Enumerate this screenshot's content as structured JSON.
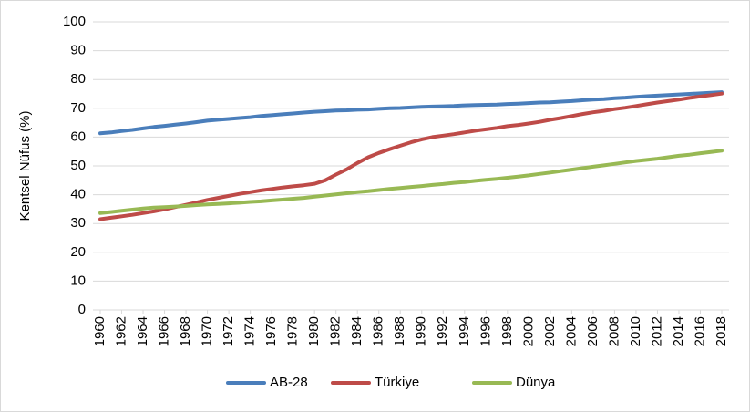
{
  "chart_data": {
    "type": "line",
    "y_label": "Kentsel Nüfus (%)",
    "x": [
      1960,
      1961,
      1962,
      1963,
      1964,
      1965,
      1966,
      1967,
      1968,
      1969,
      1970,
      1971,
      1972,
      1973,
      1974,
      1975,
      1976,
      1977,
      1978,
      1979,
      1980,
      1981,
      1982,
      1983,
      1984,
      1985,
      1986,
      1987,
      1988,
      1989,
      1990,
      1991,
      1992,
      1993,
      1994,
      1995,
      1996,
      1997,
      1998,
      1999,
      2000,
      2001,
      2002,
      2003,
      2004,
      2005,
      2006,
      2007,
      2008,
      2009,
      2010,
      2011,
      2012,
      2013,
      2014,
      2015,
      2016,
      2017,
      2018
    ],
    "series": [
      {
        "name": "AB-28",
        "color": "#4a7ebb",
        "values": [
          61.3,
          61.6,
          62.1,
          62.5,
          63.0,
          63.5,
          63.9,
          64.3,
          64.7,
          65.2,
          65.7,
          66.0,
          66.3,
          66.6,
          66.9,
          67.3,
          67.6,
          67.9,
          68.2,
          68.5,
          68.8,
          69.0,
          69.2,
          69.3,
          69.5,
          69.6,
          69.8,
          70.0,
          70.1,
          70.3,
          70.5,
          70.6,
          70.7,
          70.8,
          71.0,
          71.1,
          71.2,
          71.3,
          71.5,
          71.6,
          71.8,
          72.0,
          72.1,
          72.3,
          72.5,
          72.8,
          73.0,
          73.2,
          73.5,
          73.7,
          74.0,
          74.2,
          74.4,
          74.6,
          74.8,
          75.0,
          75.2,
          75.4,
          75.6
        ]
      },
      {
        "name": "Türkiye",
        "color": "#be4b48",
        "values": [
          31.5,
          32.0,
          32.5,
          33.0,
          33.6,
          34.2,
          34.9,
          35.7,
          36.5,
          37.3,
          38.2,
          38.9,
          39.6,
          40.3,
          40.9,
          41.5,
          42.0,
          42.5,
          42.9,
          43.3,
          43.8,
          45.0,
          47.0,
          48.8,
          51.0,
          53.0,
          54.5,
          55.8,
          57.0,
          58.2,
          59.2,
          60.0,
          60.5,
          61.0,
          61.6,
          62.2,
          62.7,
          63.2,
          63.8,
          64.2,
          64.7,
          65.3,
          66.0,
          66.6,
          67.3,
          68.0,
          68.6,
          69.1,
          69.7,
          70.2,
          70.8,
          71.4,
          72.0,
          72.5,
          73.0,
          73.6,
          74.1,
          74.6,
          75.1
        ]
      },
      {
        "name": "Dünya",
        "color": "#98b954",
        "values": [
          33.6,
          34.0,
          34.4,
          34.8,
          35.2,
          35.5,
          35.7,
          35.9,
          36.1,
          36.4,
          36.6,
          36.8,
          37.0,
          37.2,
          37.5,
          37.7,
          38.0,
          38.3,
          38.6,
          38.9,
          39.3,
          39.7,
          40.1,
          40.5,
          40.9,
          41.2,
          41.6,
          42.0,
          42.3,
          42.7,
          43.0,
          43.4,
          43.7,
          44.1,
          44.4,
          44.8,
          45.2,
          45.5,
          45.9,
          46.3,
          46.7,
          47.2,
          47.7,
          48.2,
          48.7,
          49.2,
          49.7,
          50.2,
          50.7,
          51.2,
          51.7,
          52.1,
          52.5,
          53.0,
          53.5,
          53.9,
          54.4,
          54.8,
          55.3
        ]
      }
    ],
    "xlim": [
      1960,
      2018
    ],
    "xticks": [
      1960,
      1962,
      1964,
      1966,
      1968,
      1970,
      1972,
      1974,
      1976,
      1978,
      1980,
      1982,
      1984,
      1986,
      1988,
      1990,
      1992,
      1994,
      1996,
      1998,
      2000,
      2002,
      2004,
      2006,
      2008,
      2010,
      2012,
      2014,
      2016,
      2018
    ],
    "ylim": [
      0,
      100
    ],
    "yticks": [
      0,
      10,
      20,
      30,
      40,
      50,
      60,
      70,
      80,
      90,
      100
    ],
    "grid": true,
    "legend": "bottom"
  }
}
